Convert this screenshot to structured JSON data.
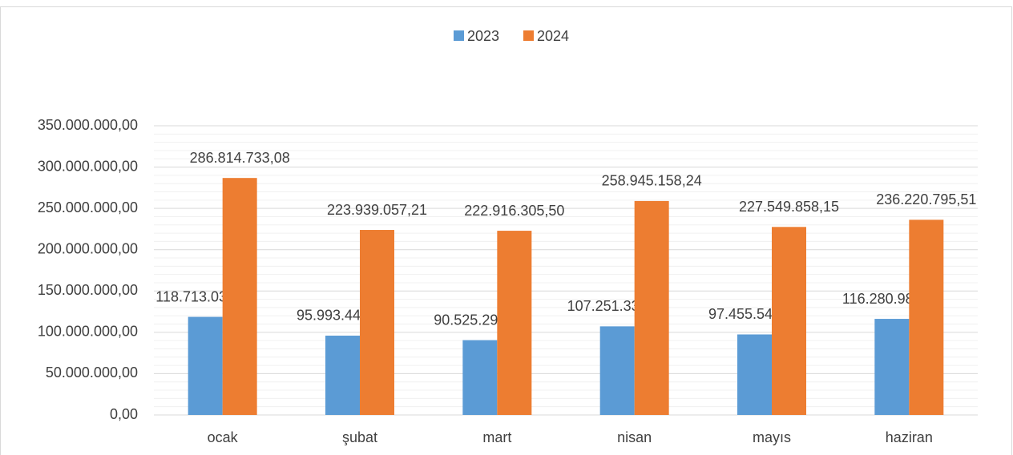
{
  "chart_data": {
    "type": "bar",
    "categories": [
      "ocak",
      "şubat",
      "mart",
      "nisan",
      "mayıs",
      "haziran"
    ],
    "series": [
      {
        "name": "2023",
        "color": "#5b9bd5",
        "values": [
          118713039.29,
          95993442.83,
          90525292.43,
          107251330.73,
          97455544.02,
          116280985.21
        ],
        "value_labels": [
          "118.713.039,29",
          "95.993.442,83",
          "90.525.292,43",
          "107.251.330,73",
          "97.455.544,02",
          "116.280.985,21"
        ]
      },
      {
        "name": "2024",
        "color": "#ed7d31",
        "values": [
          286814733.08,
          223939057.21,
          222916305.5,
          258945158.24,
          227549858.15,
          236220795.51
        ],
        "value_labels": [
          "286.814.733,08",
          "223.939.057,21",
          "222.916.305,50",
          "258.945.158,24",
          "227.549.858,15",
          "236.220.795,51"
        ]
      }
    ],
    "ylim": [
      0,
      350000000
    ],
    "yticks": [
      {
        "value": 0,
        "label": "0,00"
      },
      {
        "value": 50000000,
        "label": "50.000.000,00"
      },
      {
        "value": 100000000,
        "label": "100.000.000,00"
      },
      {
        "value": 150000000,
        "label": "150.000.000,00"
      },
      {
        "value": 200000000,
        "label": "200.000.000,00"
      },
      {
        "value": 250000000,
        "label": "250.000.000,00"
      },
      {
        "value": 300000000,
        "label": "300.000.000,00"
      },
      {
        "value": 350000000,
        "label": "350.000.000,00"
      }
    ],
    "minor_yticks": [
      10000000,
      20000000,
      30000000,
      40000000,
      60000000,
      70000000,
      80000000,
      90000000,
      110000000,
      120000000,
      130000000,
      140000000,
      160000000,
      170000000,
      180000000,
      190000000,
      210000000,
      220000000,
      230000000,
      240000000,
      260000000,
      270000000,
      280000000,
      290000000,
      310000000,
      320000000,
      330000000,
      340000000
    ],
    "grid": true,
    "legend": "top"
  }
}
